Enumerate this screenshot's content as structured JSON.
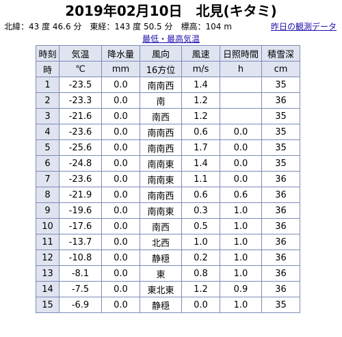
{
  "page": {
    "title": "2019年02月10日　北見(キタミ)",
    "location": "北緯：43 度 46.6 分　東経：143 度 50.5 分　標高：104 m",
    "prev_day_link": "昨日の観測データ",
    "minmax_link": "最低・最高気温"
  },
  "table": {
    "headers": [
      "時刻",
      "気温",
      "降水量",
      "風向",
      "風速",
      "日照時間",
      "積雪深"
    ],
    "units": [
      "時",
      "℃",
      "mm",
      "16方位",
      "m/s",
      "h",
      "cm"
    ],
    "rows": [
      [
        "1",
        "-23.5",
        "0.0",
        "南南西",
        "1.4",
        "",
        "35"
      ],
      [
        "2",
        "-23.3",
        "0.0",
        "南",
        "1.2",
        "",
        "36"
      ],
      [
        "3",
        "-21.6",
        "0.0",
        "南西",
        "1.2",
        "",
        "35"
      ],
      [
        "4",
        "-23.6",
        "0.0",
        "南南西",
        "0.6",
        "0.0",
        "35"
      ],
      [
        "5",
        "-25.6",
        "0.0",
        "南南西",
        "1.7",
        "0.0",
        "35"
      ],
      [
        "6",
        "-24.8",
        "0.0",
        "南南東",
        "1.4",
        "0.0",
        "35"
      ],
      [
        "7",
        "-23.6",
        "0.0",
        "南南東",
        "1.1",
        "0.0",
        "36"
      ],
      [
        "8",
        "-21.9",
        "0.0",
        "南南西",
        "0.6",
        "0.6",
        "36"
      ],
      [
        "9",
        "-19.6",
        "0.0",
        "南南東",
        "0.3",
        "1.0",
        "36"
      ],
      [
        "10",
        "-17.6",
        "0.0",
        "南西",
        "0.5",
        "1.0",
        "36"
      ],
      [
        "11",
        "-13.7",
        "0.0",
        "北西",
        "1.0",
        "1.0",
        "36"
      ],
      [
        "12",
        "-10.8",
        "0.0",
        "静穏",
        "0.2",
        "1.0",
        "36"
      ],
      [
        "13",
        "-8.1",
        "0.0",
        "東",
        "0.8",
        "1.0",
        "36"
      ],
      [
        "14",
        "-7.5",
        "0.0",
        "東北東",
        "1.2",
        "0.9",
        "36"
      ],
      [
        "15",
        "-6.9",
        "0.0",
        "静穏",
        "0.0",
        "1.0",
        "35"
      ]
    ]
  }
}
